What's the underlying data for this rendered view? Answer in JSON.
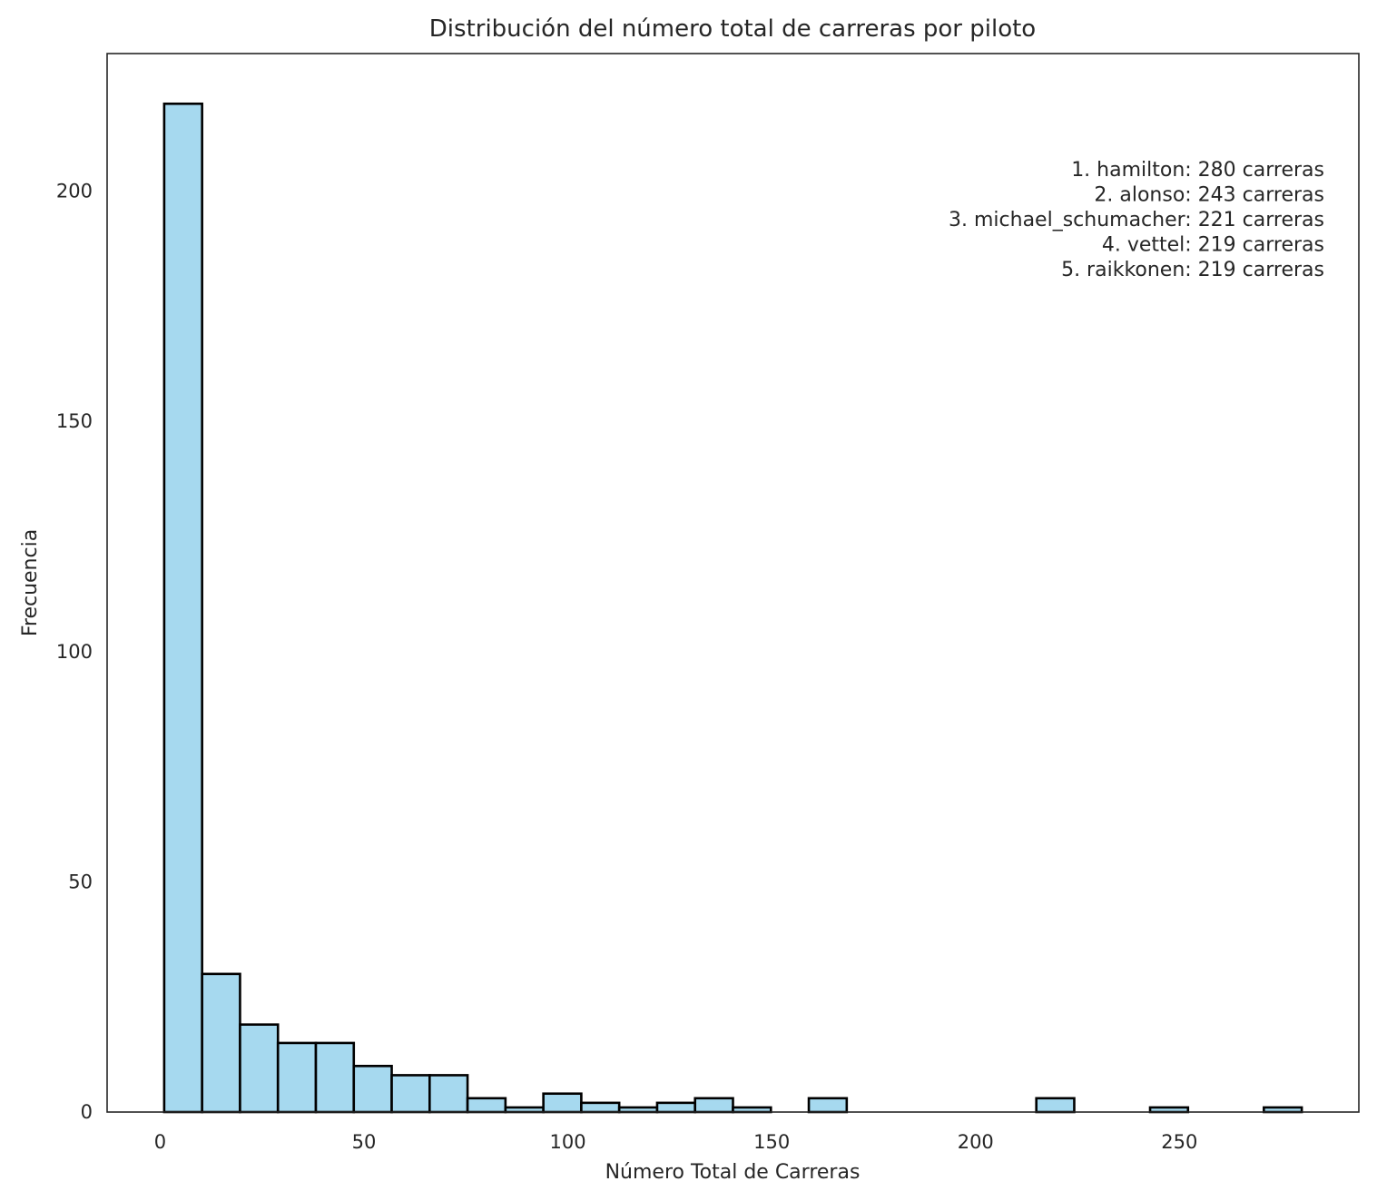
{
  "chart_data": {
    "type": "bar",
    "title": "Distribución del número total de carreras por piloto",
    "xlabel": "Número Total de Carreras",
    "ylabel": "Frecuencia",
    "bin_edges": [
      1,
      10.3,
      19.6,
      28.9,
      38.2,
      47.5,
      56.8,
      66.1,
      75.4,
      84.7,
      94,
      103.3,
      112.6,
      121.9,
      131.2,
      140.5,
      149.8,
      159.1,
      168.4,
      177.7,
      187,
      196.3,
      205.6,
      214.9,
      224.2,
      233.5,
      242.8,
      252.1,
      261.4,
      270.7,
      280
    ],
    "values": [
      219,
      30,
      19,
      15,
      15,
      10,
      8,
      8,
      3,
      1,
      4,
      2,
      1,
      2,
      3,
      1,
      0,
      3,
      0,
      0,
      0,
      0,
      0,
      3,
      0,
      0,
      1,
      0,
      0,
      1
    ],
    "xlim": [
      -13,
      294
    ],
    "ylim": [
      0,
      229.9
    ],
    "xticks": [
      0,
      50,
      100,
      150,
      200,
      250
    ],
    "yticks": [
      0,
      50,
      100,
      150,
      200
    ],
    "grid": false,
    "bar_color": "#a6d9ef",
    "edge_color": "#000000",
    "annotation": [
      "1. hamilton: 280 carreras",
      "2. alonso: 243 carreras",
      "3. michael_schumacher: 221 carreras",
      "4. vettel: 219 carreras",
      "5. raikkonen: 219 carreras"
    ],
    "annotation_placement": "top-right"
  }
}
